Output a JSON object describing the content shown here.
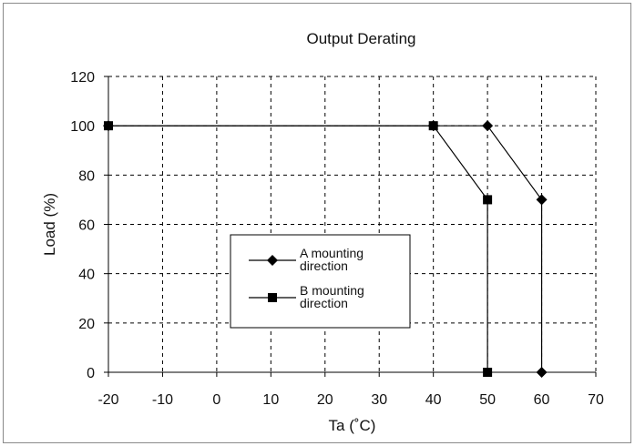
{
  "chart_data": {
    "type": "line",
    "title": "Output Derating",
    "xlabel": "Ta (˚C)",
    "ylabel": "Load (%)",
    "xlim": [
      -20,
      70
    ],
    "ylim": [
      0,
      120
    ],
    "xticks": [
      -20,
      -10,
      0,
      10,
      20,
      30,
      40,
      50,
      60,
      70
    ],
    "yticks": [
      0,
      20,
      40,
      60,
      80,
      100,
      120
    ],
    "grid": true,
    "legend_position": "center-left",
    "series": [
      {
        "name": "A mounting direction",
        "name_lines": [
          "A mounting",
          "direction"
        ],
        "marker": "diamond",
        "color": "#000000",
        "points": [
          [
            -20,
            100
          ],
          [
            40,
            100
          ],
          [
            50,
            100
          ],
          [
            60,
            70
          ],
          [
            60,
            0
          ]
        ]
      },
      {
        "name": "B mounting direction",
        "name_lines": [
          "B mounting",
          "direction"
        ],
        "marker": "square",
        "color": "#000000",
        "points": [
          [
            -20,
            100
          ],
          [
            40,
            100
          ],
          [
            50,
            70
          ],
          [
            50,
            0
          ]
        ]
      }
    ]
  }
}
